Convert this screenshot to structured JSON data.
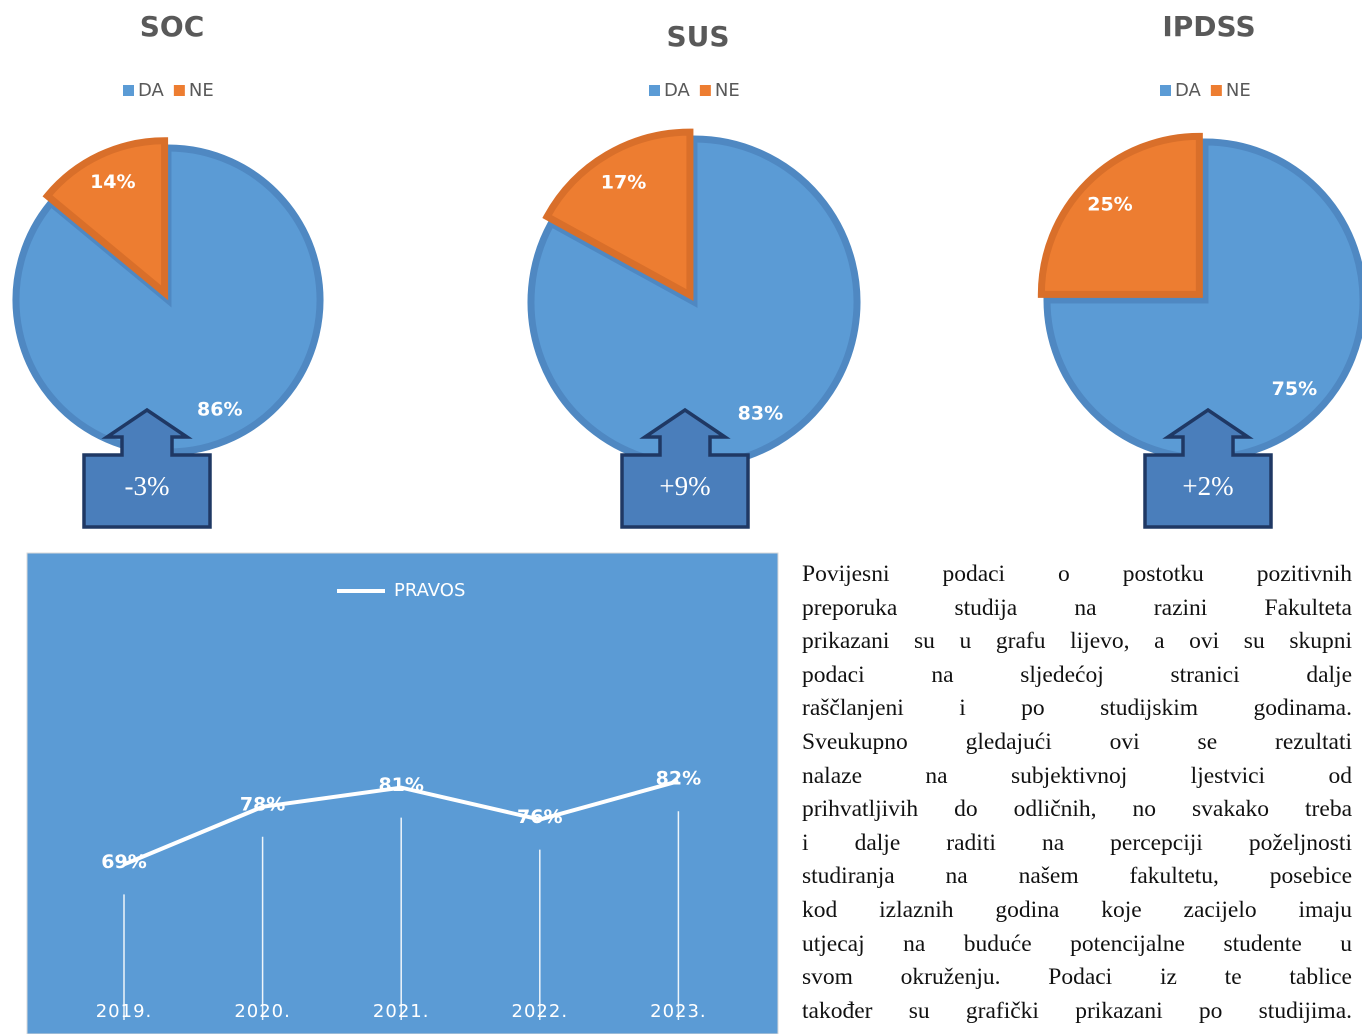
{
  "chart_data": [
    {
      "type": "pie",
      "title": "SOC",
      "categories": [
        "DA",
        "NE"
      ],
      "values": [
        86,
        14
      ],
      "value_labels": [
        "86%",
        "14%"
      ],
      "colors": [
        "#5b9bd5",
        "#ed7d31"
      ],
      "legend": "top",
      "annotation": "-3%"
    },
    {
      "type": "pie",
      "title": "SUS",
      "categories": [
        "DA",
        "NE"
      ],
      "values": [
        83,
        17
      ],
      "value_labels": [
        "83%",
        "17%"
      ],
      "colors": [
        "#5b9bd5",
        "#ed7d31"
      ],
      "legend": "top",
      "annotation": "+9%"
    },
    {
      "type": "pie",
      "title": "IPDSS",
      "categories": [
        "DA",
        "NE"
      ],
      "values": [
        75,
        25
      ],
      "value_labels": [
        "75%",
        "25%"
      ],
      "colors": [
        "#5b9bd5",
        "#ed7d31"
      ],
      "legend": "top",
      "annotation": "+2%"
    },
    {
      "type": "line",
      "categories": [
        "2019.",
        "2020.",
        "2021.",
        "2022.",
        "2023."
      ],
      "series": [
        {
          "name": "PRAVOS",
          "color": "#ffffff",
          "values": [
            69,
            78,
            81,
            76,
            82
          ],
          "value_labels": [
            "69%",
            "78%",
            "81%",
            "76%",
            "82%"
          ]
        }
      ],
      "legend": "top"
    }
  ],
  "paragraph": {
    "lines": [
      "Povijesni podaci o postotku pozitivnih",
      "preporuka studija na razini Fakulteta",
      "prikazani su u grafu lijevo, a ovi su skupni",
      "podaci na sljedećoj stranici dalje",
      "raščlanjeni i po studijskim godinama.",
      "Sveukupno gledajući ovi se rezultati",
      "nalaze na subjektivnoj ljestvici od",
      "prihvatljivih do odličnih, no svakako treba",
      "i dalje raditi na percepciji poželjnosti",
      "studiranja na našem fakultetu, posebice",
      "kod izlaznih godina koje zacijelo imaju",
      "utjecaj na buduće potencijalne studente u",
      "svom okruženju. Podaci iz te tablice",
      "također su grafički prikazani po studijima."
    ]
  }
}
